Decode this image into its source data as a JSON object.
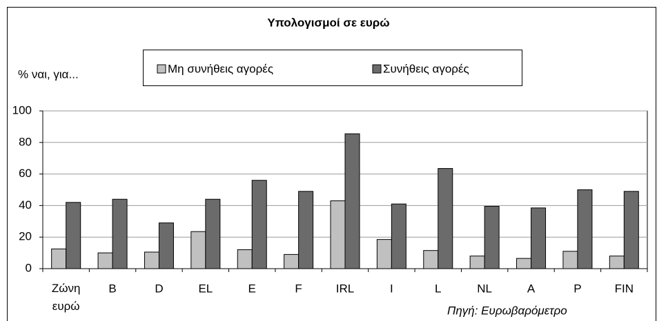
{
  "chart_data": {
    "type": "bar",
    "title": "Υπολογισμοί σε ευρώ",
    "ylabel": "% ναι, για...",
    "annotation": "Πηγή: Ευρωβαρόμετρο",
    "categories": [
      "Ζώνη ευρώ",
      "B",
      "D",
      "EL",
      "E",
      "F",
      "IRL",
      "I",
      "L",
      "NL",
      "A",
      "P",
      "FIN"
    ],
    "series": [
      {
        "name": "Μη συνήθεις αγορές",
        "color": "#c0c0c0",
        "values": [
          12.5,
          10,
          10.5,
          23.5,
          12,
          9,
          43,
          18.5,
          11.5,
          8,
          6.5,
          11,
          8
        ]
      },
      {
        "name": "Συνήθεις αγορές",
        "color": "#6b6b6b",
        "values": [
          42,
          44,
          29,
          44,
          56,
          49,
          85.5,
          41,
          63.5,
          39.5,
          38.5,
          50,
          49
        ]
      }
    ],
    "ylim": [
      0,
      100
    ],
    "yticks": [
      0,
      20,
      40,
      60,
      80,
      100
    ],
    "grid": true
  }
}
